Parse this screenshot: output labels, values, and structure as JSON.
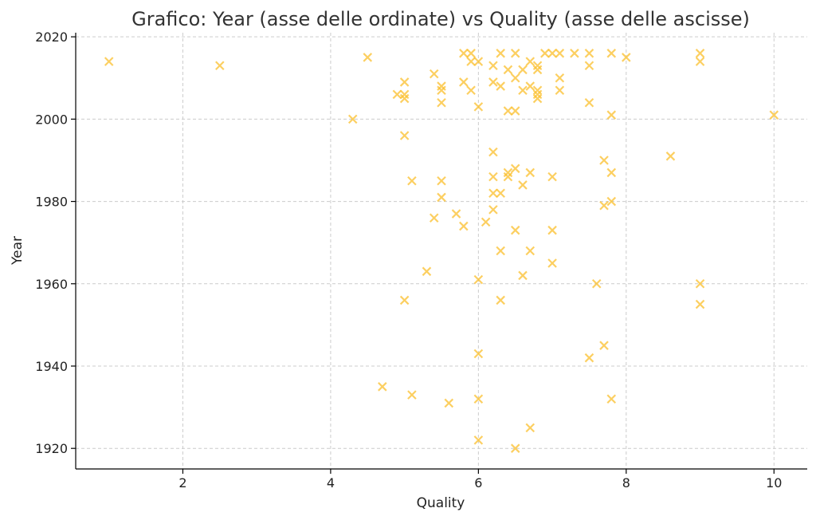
{
  "chart_data": {
    "type": "scatter",
    "title": "Grafico: Year (asse delle ordinate) vs Quality (asse delle ascisse)",
    "xlabel": "Quality",
    "ylabel": "Year",
    "xlim": [
      0.55,
      10.45
    ],
    "ylim": [
      1915,
      2021
    ],
    "xticks": [
      2,
      4,
      6,
      8,
      10
    ],
    "yticks": [
      1920,
      1940,
      1960,
      1980,
      2000,
      2020
    ],
    "grid": true,
    "marker": "x",
    "color": "#FBC02D",
    "series": [
      {
        "points": [
          [
            1,
            2014
          ],
          [
            2.5,
            2013
          ],
          [
            4.5,
            2015
          ],
          [
            4.3,
            2000
          ],
          [
            4.9,
            2006
          ],
          [
            5,
            2009
          ],
          [
            5,
            2006
          ],
          [
            5,
            2005
          ],
          [
            5,
            1996
          ],
          [
            5.1,
            1985
          ],
          [
            5,
            1956
          ],
          [
            4.7,
            1935
          ],
          [
            5.1,
            1933
          ],
          [
            5.4,
            2011
          ],
          [
            5.5,
            2008
          ],
          [
            5.5,
            2007
          ],
          [
            5.5,
            2004
          ],
          [
            5.5,
            1985
          ],
          [
            5.5,
            1981
          ],
          [
            5.4,
            1976
          ],
          [
            5.3,
            1963
          ],
          [
            5.6,
            1931
          ],
          [
            5.8,
            2016
          ],
          [
            5.9,
            2016
          ],
          [
            5.9,
            2014
          ],
          [
            6,
            2014
          ],
          [
            5.8,
            2009
          ],
          [
            5.9,
            2007
          ],
          [
            6,
            2003
          ],
          [
            5.7,
            1977
          ],
          [
            5.8,
            1974
          ],
          [
            6,
            1961
          ],
          [
            6,
            1943
          ],
          [
            6,
            1932
          ],
          [
            6,
            1922
          ],
          [
            6.1,
            1975
          ],
          [
            6.3,
            2016
          ],
          [
            6.5,
            2016
          ],
          [
            6.2,
            2013
          ],
          [
            6.4,
            2012
          ],
          [
            6.6,
            2012
          ],
          [
            6.5,
            2010
          ],
          [
            6.2,
            2009
          ],
          [
            6.3,
            2008
          ],
          [
            6.4,
            2002
          ],
          [
            6.5,
            2002
          ],
          [
            6.2,
            1992
          ],
          [
            6.5,
            1988
          ],
          [
            6.4,
            1987
          ],
          [
            6.4,
            1986
          ],
          [
            6.2,
            1986
          ],
          [
            6.6,
            1984
          ],
          [
            6.2,
            1982
          ],
          [
            6.3,
            1982
          ],
          [
            6.2,
            1978
          ],
          [
            6.5,
            1973
          ],
          [
            6.3,
            1968
          ],
          [
            6.6,
            1962
          ],
          [
            6.3,
            1956
          ],
          [
            6.5,
            1920
          ],
          [
            6.9,
            2016
          ],
          [
            7,
            2016
          ],
          [
            7.1,
            2016
          ],
          [
            7.3,
            2016
          ],
          [
            7.5,
            2016
          ],
          [
            6.7,
            2014
          ],
          [
            6.8,
            2013
          ],
          [
            6.8,
            2012
          ],
          [
            6.6,
            2007
          ],
          [
            6.7,
            2008
          ],
          [
            6.8,
            2007
          ],
          [
            6.8,
            2006
          ],
          [
            6.8,
            2005
          ],
          [
            7.1,
            2010
          ],
          [
            7.1,
            2007
          ],
          [
            6.7,
            1987
          ],
          [
            7,
            1986
          ],
          [
            6.7,
            1968
          ],
          [
            7,
            1973
          ],
          [
            7,
            1965
          ],
          [
            6.7,
            1925
          ],
          [
            7.5,
            2013
          ],
          [
            7.5,
            2004
          ],
          [
            7.8,
            2016
          ],
          [
            8,
            2015
          ],
          [
            7.8,
            2001
          ],
          [
            7.7,
            1990
          ],
          [
            7.8,
            1987
          ],
          [
            7.8,
            1980
          ],
          [
            7.7,
            1979
          ],
          [
            7.6,
            1960
          ],
          [
            7.7,
            1945
          ],
          [
            7.5,
            1942
          ],
          [
            7.8,
            1932
          ],
          [
            8.6,
            1991
          ],
          [
            9,
            2016
          ],
          [
            9,
            2014
          ],
          [
            9,
            1960
          ],
          [
            9,
            1955
          ],
          [
            10,
            2001
          ]
        ]
      }
    ]
  }
}
